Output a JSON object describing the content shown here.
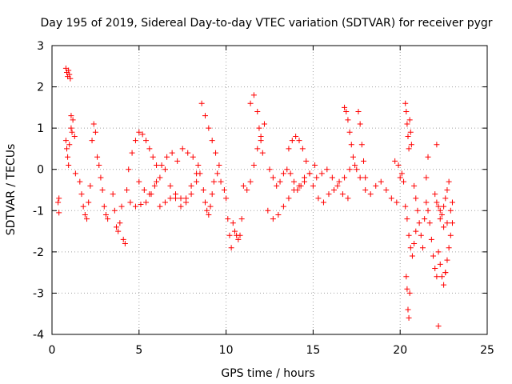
{
  "chart_data": {
    "type": "scatter",
    "title": "Day 195 of 2019, Sidereal Day-to-day VTEC variation (SDTVAR) for receiver pygr",
    "xlabel": "GPS time / hours",
    "ylabel": "SDTVAR / TECUs",
    "xlim": [
      0,
      25
    ],
    "ylim": [
      -4,
      3
    ],
    "xticks": [
      0,
      5,
      10,
      15,
      20,
      25
    ],
    "yticks": [
      -4,
      -3,
      -2,
      -1,
      0,
      1,
      2,
      3
    ],
    "xtick_labels": [
      "0",
      "5",
      "10",
      "15",
      "20",
      "25"
    ],
    "ytick_labels": [
      "-4",
      "-3",
      "-2",
      "-1",
      "0",
      "1",
      "2",
      "3"
    ],
    "grid": true,
    "marker": "+",
    "series_color": "#ff0000",
    "series": [
      {
        "name": "SDTVAR",
        "x": [
          0.35,
          0.4,
          0.4,
          0.8,
          0.85,
          0.9,
          0.95,
          1.0,
          1.05,
          1.1,
          1.15,
          0.8,
          0.85,
          0.9,
          0.95,
          1.0,
          1.1,
          1.2,
          1.3,
          1.35,
          1.6,
          1.7,
          1.8,
          1.9,
          2.0,
          2.1,
          2.2,
          2.3,
          2.4,
          2.5,
          2.6,
          2.7,
          2.8,
          2.9,
          3.0,
          3.1,
          3.2,
          3.5,
          3.6,
          3.7,
          3.8,
          3.9,
          4.0,
          4.1,
          4.2,
          4.3,
          4.4,
          4.6,
          4.8,
          5.0,
          5.2,
          5.4,
          5.6,
          5.8,
          6.0,
          4.5,
          4.8,
          5.1,
          5.4,
          5.7,
          6.0,
          6.3,
          6.6,
          6.9,
          7.2,
          6.2,
          6.5,
          6.8,
          7.1,
          7.4,
          7.7,
          8.0,
          8.3,
          8.5,
          5.0,
          5.3,
          5.6,
          5.9,
          6.2,
          6.5,
          6.8,
          7.1,
          7.4,
          7.7,
          8.0,
          8.3,
          7.5,
          7.8,
          8.1,
          8.4,
          8.6,
          8.8,
          9.0,
          9.2,
          9.4,
          9.6,
          8.7,
          8.8,
          8.9,
          9.0,
          9.1,
          9.2,
          9.3,
          9.5,
          9.7,
          9.9,
          10.0,
          10.1,
          10.2,
          10.3,
          10.4,
          10.5,
          10.6,
          10.7,
          10.8,
          10.9,
          11.0,
          11.2,
          11.4,
          11.6,
          11.8,
          12.0,
          12.2,
          11.4,
          11.6,
          11.8,
          11.9,
          12.0,
          12.1,
          12.5,
          12.7,
          12.9,
          13.1,
          13.3,
          13.5,
          13.7,
          13.9,
          14.1,
          14.3,
          14.5,
          12.4,
          12.7,
          13.0,
          13.3,
          13.6,
          13.9,
          14.2,
          14.5,
          14.8,
          15.1,
          13.6,
          13.8,
          14.0,
          14.2,
          14.4,
          14.6,
          14.8,
          15.0,
          15.3,
          15.6,
          15.9,
          16.2,
          16.5,
          16.8,
          17.1,
          17.4,
          15.2,
          15.5,
          15.8,
          16.1,
          16.4,
          16.7,
          17.0,
          16.8,
          16.9,
          17.0,
          17.1,
          17.2,
          17.3,
          17.5,
          17.7,
          17.6,
          17.7,
          17.8,
          17.9,
          18.0,
          18.0,
          18.3,
          18.6,
          18.9,
          19.2,
          19.5,
          19.8,
          20.0,
          19.7,
          19.9,
          20.1,
          20.2,
          20.3,
          20.35,
          20.4,
          20.45,
          20.5,
          20.55,
          20.6,
          20.65,
          20.3,
          20.4,
          20.5,
          20.6,
          20.7,
          20.8,
          20.9,
          20.35,
          20.4,
          20.45,
          20.5,
          20.55,
          20.8,
          20.9,
          21.0,
          21.1,
          21.2,
          21.3,
          21.4,
          21.5,
          21.6,
          21.7,
          21.8,
          21.9,
          22.0,
          22.1,
          22.0,
          22.1,
          22.2,
          22.3,
          22.4,
          22.5,
          22.6,
          22.7,
          22.8,
          22.2,
          22.3,
          22.4,
          22.5,
          22.6,
          22.7,
          22.8,
          22.9,
          23.0,
          22.3,
          22.5,
          22.7,
          22.9,
          23.0,
          21.5,
          21.6,
          22.1,
          22.2,
          22.6
        ],
        "y": [
          -0.8,
          -1.05,
          -0.7,
          2.45,
          2.35,
          2.25,
          2.4,
          2.3,
          2.2,
          1.0,
          0.9,
          0.7,
          0.5,
          0.3,
          0.1,
          0.6,
          1.3,
          1.2,
          0.8,
          -0.1,
          -0.3,
          -0.6,
          -0.9,
          -1.1,
          -1.2,
          -0.8,
          -0.4,
          0.7,
          1.1,
          0.9,
          0.3,
          0.1,
          -0.2,
          -0.5,
          -0.9,
          -1.1,
          -1.2,
          -0.6,
          -1.0,
          -1.4,
          -1.5,
          -1.3,
          -0.9,
          -1.7,
          -1.8,
          -0.5,
          0.0,
          0.4,
          0.7,
          0.9,
          0.85,
          0.7,
          0.5,
          0.3,
          0.1,
          -0.8,
          -0.9,
          -0.85,
          -0.8,
          -0.6,
          -0.3,
          0.1,
          0.3,
          0.4,
          0.2,
          -0.9,
          -0.8,
          -0.7,
          -0.6,
          -0.7,
          -0.8,
          -0.6,
          -0.3,
          -0.1,
          -0.3,
          -0.5,
          -0.6,
          -0.4,
          -0.2,
          0.0,
          -0.4,
          -0.7,
          -0.9,
          -0.7,
          -0.4,
          -0.1,
          0.5,
          0.4,
          0.3,
          0.1,
          1.6,
          1.3,
          1.0,
          0.7,
          0.4,
          0.1,
          -0.5,
          -0.8,
          -1.0,
          -1.1,
          -0.9,
          -0.6,
          -0.3,
          -0.1,
          -0.3,
          -0.5,
          -0.7,
          -1.2,
          -1.6,
          -1.9,
          -1.3,
          -1.5,
          -1.6,
          -1.7,
          -1.6,
          -1.2,
          -0.4,
          -0.5,
          -0.3,
          0.1,
          0.5,
          0.8,
          1.1,
          1.6,
          1.8,
          1.4,
          1.0,
          0.7,
          0.4,
          0.0,
          -0.2,
          -0.4,
          -0.3,
          -0.1,
          0.0,
          -0.1,
          -0.3,
          -0.5,
          -0.4,
          -0.2,
          -1.0,
          -1.2,
          -1.1,
          -0.9,
          -0.7,
          -0.5,
          -0.4,
          -0.3,
          -0.1,
          0.1,
          0.5,
          0.7,
          0.8,
          0.7,
          0.5,
          0.2,
          -0.1,
          -0.4,
          -0.7,
          -0.8,
          -0.6,
          -0.5,
          -0.3,
          -0.2,
          0.0,
          0.1,
          -0.2,
          -0.1,
          0.0,
          -0.2,
          -0.4,
          -0.6,
          -0.7,
          1.5,
          1.4,
          1.2,
          0.9,
          0.6,
          0.3,
          0.0,
          -0.2,
          1.4,
          1.1,
          0.6,
          0.2,
          -0.2,
          -0.5,
          -0.6,
          -0.4,
          -0.3,
          -0.5,
          -0.7,
          -0.8,
          -0.2,
          0.2,
          0.1,
          -0.1,
          -0.3,
          1.6,
          1.4,
          1.1,
          0.8,
          0.5,
          1.2,
          0.9,
          0.6,
          -0.9,
          -1.2,
          -1.6,
          -1.9,
          -2.1,
          -1.8,
          -1.5,
          -2.6,
          -2.9,
          -3.4,
          -3.6,
          -3.0,
          -0.4,
          -0.7,
          -1.0,
          -1.3,
          -1.6,
          -1.9,
          -1.2,
          -0.8,
          -1.0,
          -1.3,
          -1.7,
          -2.1,
          -2.4,
          -2.6,
          -0.6,
          -0.8,
          -0.9,
          -1.0,
          -1.1,
          -0.9,
          -0.7,
          -0.5,
          -0.3,
          -2.0,
          -2.3,
          -2.6,
          -2.8,
          -2.5,
          -2.2,
          -1.9,
          -1.6,
          -1.3,
          -1.2,
          -1.4,
          -1.3,
          -1.0,
          -0.8,
          -0.2,
          0.3,
          0.6,
          -3.8,
          -2.5
        ]
      }
    ]
  }
}
